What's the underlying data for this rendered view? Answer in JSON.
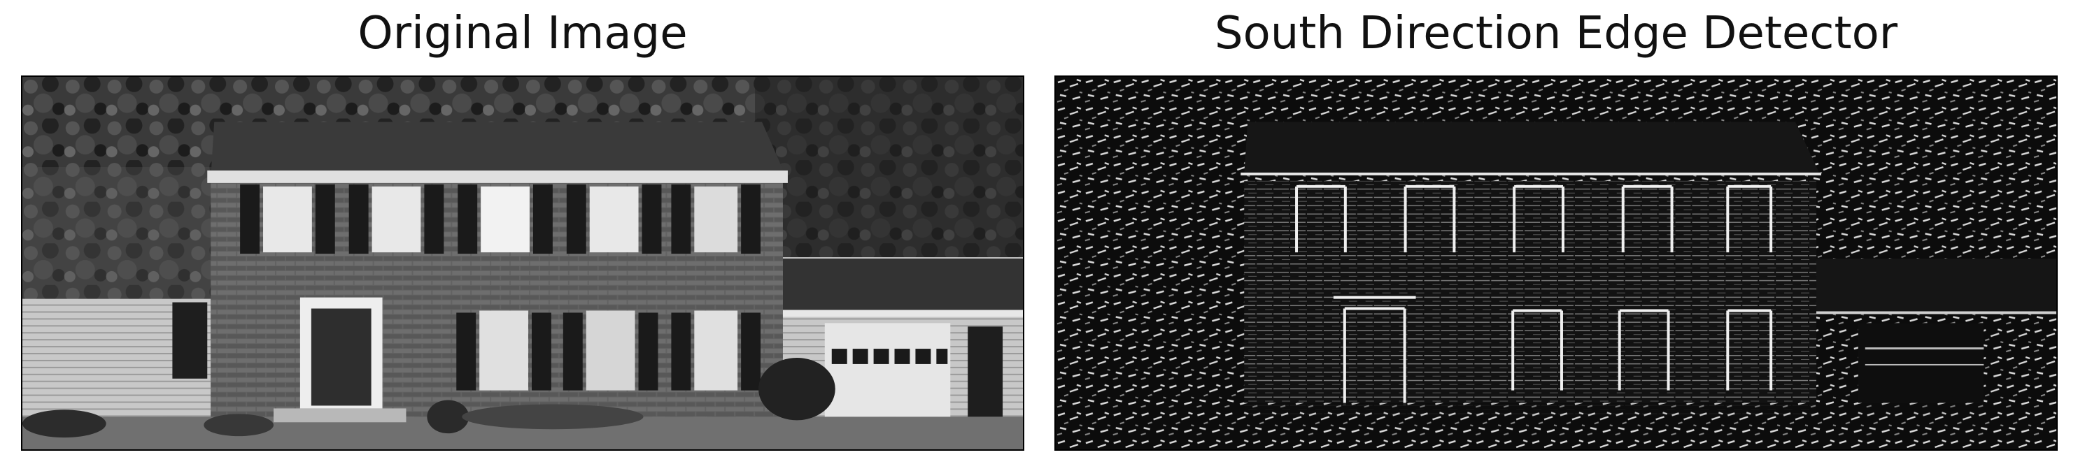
{
  "figure": {
    "panels": [
      {
        "title": "Original Image"
      },
      {
        "title": "South Direction Edge Detector"
      }
    ]
  },
  "colors": {
    "background": "#ffffff",
    "frame": "#000000",
    "sky_trees_dark": "#2a2a2a",
    "brick": "#5f5f5f",
    "roof": "#3a3a3a",
    "shutter": "#1a1a1a",
    "window_white": "#e8e8e8",
    "edge_bg": "#0a0a0a",
    "edge_highlight": "#f0f0f0"
  }
}
